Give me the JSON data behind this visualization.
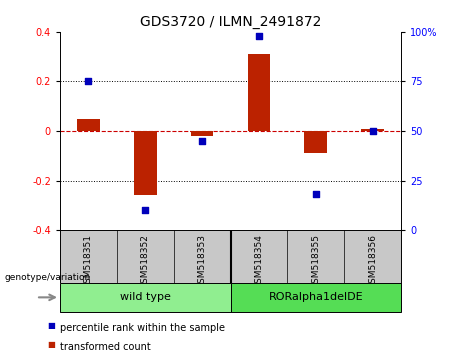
{
  "title": "GDS3720 / ILMN_2491872",
  "samples": [
    "GSM518351",
    "GSM518352",
    "GSM518353",
    "GSM518354",
    "GSM518355",
    "GSM518356"
  ],
  "bar_values": [
    0.05,
    -0.26,
    -0.02,
    0.31,
    -0.09,
    0.01
  ],
  "dot_values_pct": [
    75,
    10,
    45,
    98,
    18,
    50
  ],
  "groups": [
    {
      "label": "wild type",
      "samples": [
        0,
        1,
        2
      ],
      "color": "#90EE90"
    },
    {
      "label": "RORalpha1delDE",
      "samples": [
        3,
        4,
        5
      ],
      "color": "#55DD55"
    }
  ],
  "bar_color": "#BB2200",
  "dot_color": "#0000BB",
  "zero_line_color": "#CC0000",
  "ylim_left": [
    -0.4,
    0.4
  ],
  "ylim_right": [
    0,
    100
  ],
  "yticks_left": [
    -0.4,
    -0.2,
    0.0,
    0.2,
    0.4
  ],
  "yticks_right": [
    0,
    25,
    50,
    75,
    100
  ],
  "bg_color": "#FFFFFF",
  "sample_bg_color": "#C8C8C8",
  "genotype_label": "genotype/variation",
  "legend_items": [
    {
      "label": "transformed count",
      "color": "#BB2200"
    },
    {
      "label": "percentile rank within the sample",
      "color": "#0000BB"
    }
  ],
  "title_fontsize": 10,
  "tick_fontsize": 7,
  "sample_fontsize": 6.5,
  "legend_fontsize": 7,
  "group_fontsize": 8
}
